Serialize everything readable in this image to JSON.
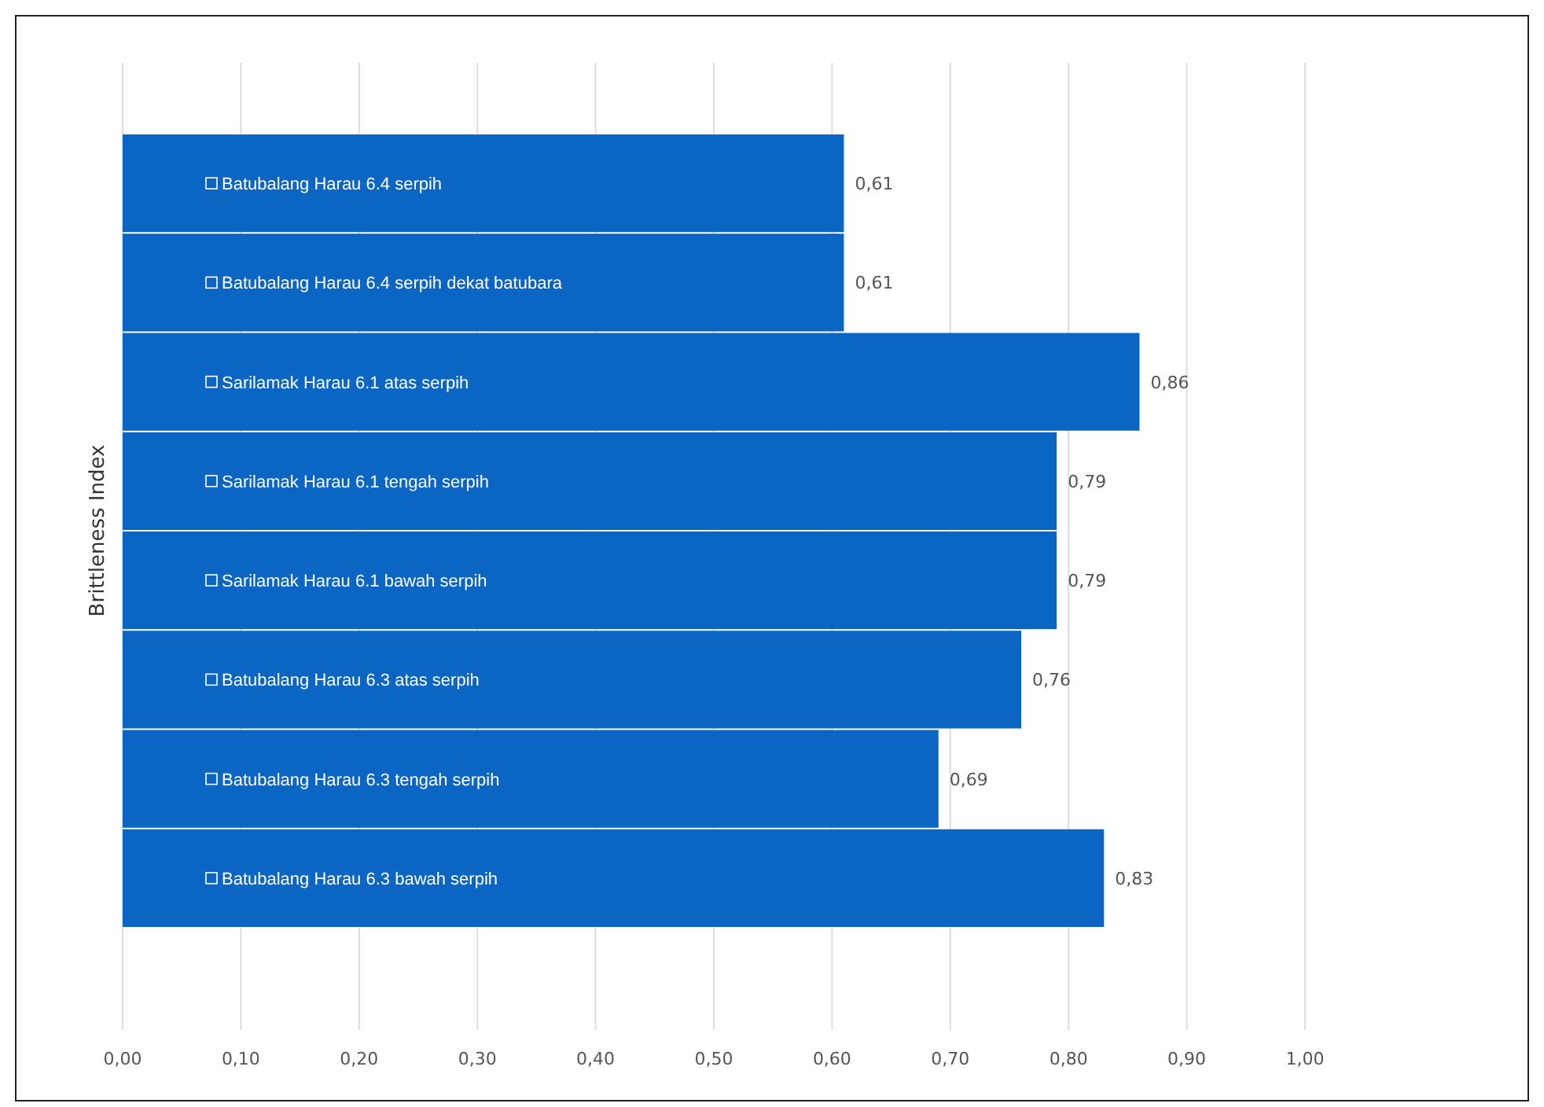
{
  "chart_data": {
    "type": "bar",
    "orientation": "horizontal",
    "ylabel": "Brittleness Index",
    "categories": [
      "Batubalang Harau 6.4 serpih",
      "Batubalang Harau 6.4 serpih dekat batubara",
      "Sarilamak Harau 6.1 atas serpih",
      "Sarilamak Harau 6.1 tengah serpih",
      "Sarilamak Harau 6.1 bawah serpih",
      "Batubalang Harau 6.3 atas serpih",
      "Batubalang Harau 6.3 tengah serpih",
      "Batubalang Harau 6.3 bawah serpih"
    ],
    "values": [
      0.61,
      0.61,
      0.86,
      0.79,
      0.79,
      0.76,
      0.69,
      0.83
    ],
    "value_labels": [
      "0,61",
      "0,61",
      "0,86",
      "0,79",
      "0,79",
      "0,76",
      "0,69",
      "0,83"
    ],
    "color": "#0a66c2",
    "xlim": [
      0,
      1
    ],
    "xticks": [
      {
        "value": 0,
        "label": "0,00"
      },
      {
        "value": 0.1,
        "label": "0,10"
      },
      {
        "value": 0.2,
        "label": "0,20"
      },
      {
        "value": 0.3,
        "label": "0,30"
      },
      {
        "value": 0.4,
        "label": "0,40"
      },
      {
        "value": 0.5,
        "label": "0,50"
      },
      {
        "value": 0.6,
        "label": "0,60"
      },
      {
        "value": 0.7,
        "label": "0,70"
      },
      {
        "value": 0.8,
        "label": "0,80"
      },
      {
        "value": 0.9,
        "label": "0,90"
      },
      {
        "value": 1,
        "label": "1,00"
      }
    ],
    "grid": "x"
  }
}
